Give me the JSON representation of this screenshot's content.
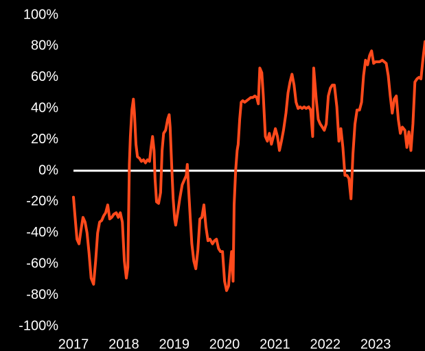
{
  "chart_data": {
    "type": "line",
    "x": [
      2017.0,
      2017.03,
      2017.07,
      2017.11,
      2017.15,
      2017.19,
      2017.23,
      2017.27,
      2017.31,
      2017.35,
      2017.4,
      2017.44,
      2017.48,
      2017.52,
      2017.56,
      2017.6,
      2017.64,
      2017.68,
      2017.72,
      2017.76,
      2017.8,
      2017.85,
      2017.89,
      2017.93,
      2017.97,
      2018.01,
      2018.05,
      2018.08,
      2018.11,
      2018.13,
      2018.16,
      2018.19,
      2018.21,
      2018.24,
      2018.27,
      2018.31,
      2018.35,
      2018.39,
      2018.43,
      2018.47,
      2018.51,
      2018.54,
      2018.57,
      2018.6,
      2018.62,
      2018.65,
      2018.69,
      2018.73,
      2018.76,
      2018.79,
      2018.83,
      2018.87,
      2018.9,
      2018.92,
      2018.95,
      2018.98,
      2019.01,
      2019.03,
      2019.07,
      2019.11,
      2019.16,
      2019.2,
      2019.24,
      2019.26,
      2019.29,
      2019.32,
      2019.35,
      2019.39,
      2019.43,
      2019.47,
      2019.51,
      2019.55,
      2019.59,
      2019.63,
      2019.67,
      2019.71,
      2019.76,
      2019.8,
      2019.84,
      2019.88,
      2019.92,
      2019.96,
      2020.0,
      2020.04,
      2020.08,
      2020.11,
      2020.14,
      2020.17,
      2020.19,
      2020.22,
      2020.25,
      2020.27,
      2020.3,
      2020.33,
      2020.36,
      2020.4,
      2020.44,
      2020.48,
      2020.52,
      2020.56,
      2020.6,
      2020.64,
      2020.67,
      2020.7,
      2020.74,
      2020.77,
      2020.81,
      2020.85,
      2020.89,
      2020.93,
      2020.97,
      2021.01,
      2021.05,
      2021.09,
      2021.13,
      2021.17,
      2021.22,
      2021.26,
      2021.3,
      2021.34,
      2021.38,
      2021.42,
      2021.46,
      2021.5,
      2021.54,
      2021.58,
      2021.62,
      2021.67,
      2021.71,
      2021.75,
      2021.77,
      2021.82,
      2021.86,
      2021.9,
      2021.94,
      2021.98,
      2022.02,
      2022.06,
      2022.1,
      2022.14,
      2022.18,
      2022.23,
      2022.27,
      2022.31,
      2022.35,
      2022.39,
      2022.43,
      2022.47,
      2022.51,
      2022.55,
      2022.59,
      2022.63,
      2022.68,
      2022.72,
      2022.76,
      2022.8,
      2022.84,
      2022.88,
      2022.92,
      2022.96,
      2023.0,
      2023.04,
      2023.08,
      2023.13,
      2023.17,
      2023.21,
      2023.25,
      2023.29,
      2023.33,
      2023.37,
      2023.41,
      2023.45,
      2023.49,
      2023.53,
      2023.58,
      2023.62,
      2023.66,
      2023.7,
      2023.74,
      2023.78,
      2023.82,
      2023.86,
      2023.9,
      2023.94,
      2023.98
    ],
    "series": [
      {
        "color": "#ff4a1c",
        "values": [
          -17,
          -29,
          -44,
          -47,
          -38,
          -30,
          -33,
          -40,
          -53,
          -69,
          -73,
          -58,
          -40,
          -33,
          -32,
          -29,
          -27,
          -22,
          -31,
          -30,
          -28,
          -27,
          -30,
          -27,
          -33,
          -58,
          -69,
          -62,
          4,
          22,
          39,
          46,
          37,
          17,
          9,
          8,
          6,
          7,
          5,
          7,
          6,
          15,
          22,
          13,
          -5,
          -20,
          -21,
          -14,
          13,
          24,
          26,
          33,
          36,
          28,
          4,
          -18,
          -31,
          -35,
          -27,
          -18,
          -9,
          -6,
          -3,
          4,
          -14,
          -31,
          -47,
          -58,
          -63,
          -51,
          -31,
          -30,
          -22,
          -36,
          -45,
          -44,
          -47,
          -45,
          -44,
          -50,
          -52,
          -52,
          -71,
          -77,
          -74,
          -62,
          -52,
          -71,
          -22,
          0,
          13,
          17,
          33,
          44,
          45,
          44,
          45,
          46,
          47,
          47,
          48,
          47,
          43,
          66,
          63,
          48,
          22,
          19,
          24,
          17,
          22,
          27,
          22,
          13,
          19,
          26,
          37,
          50,
          57,
          62,
          55,
          44,
          40,
          41,
          40,
          41,
          40,
          41,
          39,
          22,
          66,
          46,
          33,
          30,
          28,
          26,
          30,
          48,
          53,
          55,
          55,
          41,
          19,
          27,
          15,
          -3,
          -3,
          -5,
          -18,
          11,
          30,
          39,
          39,
          44,
          61,
          71,
          68,
          74,
          77,
          69,
          70,
          70,
          70,
          71,
          70,
          69,
          61,
          48,
          37,
          46,
          48,
          33,
          24,
          28,
          26,
          15,
          25,
          13,
          30,
          57,
          59,
          60,
          59,
          72,
          83
        ]
      }
    ],
    "xlim": [
      2017,
      2023.98
    ],
    "xticks": [
      2017,
      2018,
      2019,
      2020,
      2021,
      2022,
      2023
    ],
    "ylim": [
      -100,
      100
    ],
    "yticks": [
      {
        "value": 100,
        "label": "100%"
      },
      {
        "value": 80,
        "label": "80%"
      },
      {
        "value": 60,
        "label": "60%"
      },
      {
        "value": 40,
        "label": "40%"
      },
      {
        "value": 20,
        "label": "20%"
      },
      {
        "value": 0,
        "label": "0%"
      },
      {
        "value": -20,
        "label": "-20%"
      },
      {
        "value": -40,
        "label": "-40%"
      },
      {
        "value": -60,
        "label": "-60%"
      },
      {
        "value": -80,
        "label": "-80%"
      },
      {
        "value": -100,
        "label": "-100%"
      }
    ],
    "zero_line": true,
    "grid": false
  }
}
